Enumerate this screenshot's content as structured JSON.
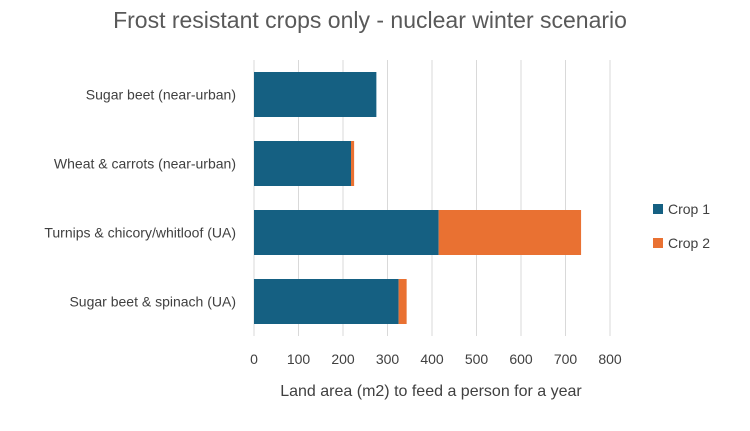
{
  "chart_data": {
    "type": "bar",
    "orientation": "horizontal",
    "stacked": true,
    "title": "Frost resistant crops only - nuclear winter scenario",
    "xlabel": "Land area (m2) to feed a person for a year",
    "ylabel": "",
    "xlim": [
      0,
      800
    ],
    "xticks": [
      0,
      100,
      200,
      300,
      400,
      500,
      600,
      700,
      800
    ],
    "grid": true,
    "legend_position": "right",
    "categories": [
      "Sugar beet (near-urban)",
      "Wheat & carrots (near-urban)",
      "Turnips & chicory/whitloof (UA)",
      "Sugar beet & spinach (UA)"
    ],
    "series": [
      {
        "name": "Crop 1",
        "color": "#156082",
        "values": [
          275,
          218,
          415,
          325
        ]
      },
      {
        "name": "Crop 2",
        "color": "#e97132",
        "values": [
          0,
          7,
          320,
          18
        ]
      }
    ]
  }
}
